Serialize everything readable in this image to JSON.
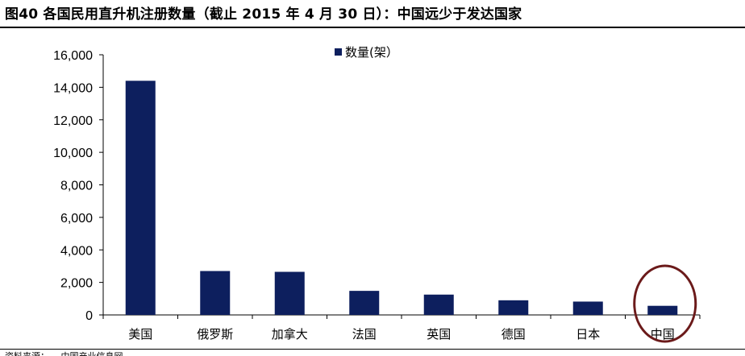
{
  "figure": {
    "title": "图40 各国民用直升机注册数量（截止 2015 年 4 月 30 日）：中国远少于发达国家",
    "source": "资料来源：                    ，中国产业信息网"
  },
  "colors": {
    "bar": "#0d1f5e",
    "axis": "#000000",
    "highlight_circle": "#6b1a1a"
  },
  "chart_data": {
    "type": "bar",
    "categories": [
      "美国",
      "俄罗斯",
      "加拿大",
      "法国",
      "英国",
      "德国",
      "日本",
      "中国"
    ],
    "series": [
      {
        "name": "数量(架）",
        "values": [
          14400,
          2700,
          2650,
          1480,
          1250,
          900,
          820,
          560
        ]
      }
    ],
    "ylim": [
      0,
      16000
    ],
    "yticks": [
      0,
      2000,
      4000,
      6000,
      8000,
      10000,
      12000,
      14000,
      16000
    ],
    "ytick_labels": [
      "0",
      "2,000",
      "4,000",
      "6,000",
      "8,000",
      "10,000",
      "12,000",
      "14,000",
      "16,000"
    ],
    "grid": false,
    "legend_position": "top-center",
    "highlighted_category": "中国"
  }
}
